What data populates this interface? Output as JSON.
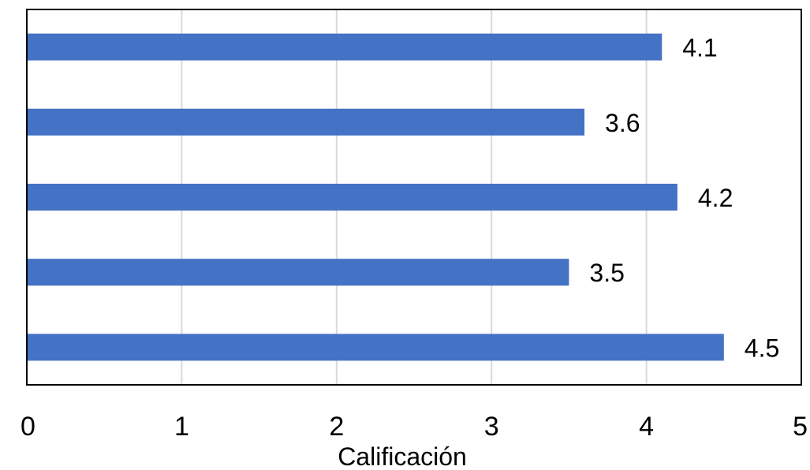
{
  "chart_data": {
    "type": "bar",
    "orientation": "horizontal",
    "values": [
      4.1,
      3.6,
      4.2,
      3.5,
      4.5
    ],
    "data_labels": [
      "4.1",
      "3.6",
      "4.2",
      "3.5",
      "4.5"
    ],
    "xlabel": "Calificación",
    "ylabel": "",
    "xlim": [
      0,
      5
    ],
    "x_ticks": [
      "0",
      "1",
      "2",
      "3",
      "4",
      "5"
    ],
    "grid": "vertical",
    "bar_color": "#4472C4",
    "grid_color": "#d9d9d9",
    "border_color": "#000000"
  }
}
